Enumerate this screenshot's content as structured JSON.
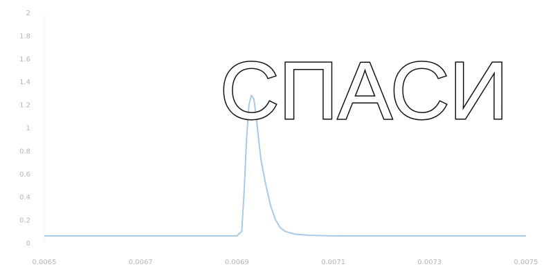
{
  "overlay": {
    "text": "СПАСИ"
  },
  "chart_data": {
    "type": "line",
    "title": "",
    "xlabel": "",
    "ylabel": "",
    "xlim": [
      0.0065,
      0.0075
    ],
    "ylim": [
      0,
      2
    ],
    "grid": false,
    "legend": "none",
    "x_ticks": [
      "0.0065",
      "0.0067",
      "0.0069",
      "0.0071",
      "0.0073",
      "0.0075"
    ],
    "y_ticks": [
      "0",
      "0.2",
      "0.4",
      "0.6",
      "0.8",
      "1",
      "1.2",
      "1.4",
      "1.6",
      "1.8",
      "2"
    ],
    "series": [
      {
        "color": "#a9c9e8",
        "x": [
          0.0065,
          0.0067,
          0.0069,
          0.0069,
          0.00691,
          0.006915,
          0.00692,
          0.006925,
          0.00693,
          0.006935,
          0.00694,
          0.006945,
          0.00695,
          0.00696,
          0.00697,
          0.00698,
          0.00699,
          0.007,
          0.00702,
          0.00705,
          0.0071,
          0.0073,
          0.0075
        ],
        "y": [
          0.06,
          0.06,
          0.06,
          0.06,
          0.1,
          0.45,
          0.9,
          1.2,
          1.28,
          1.25,
          1.1,
          0.9,
          0.72,
          0.5,
          0.32,
          0.2,
          0.13,
          0.1,
          0.075,
          0.065,
          0.06,
          0.06,
          0.06
        ]
      }
    ]
  }
}
